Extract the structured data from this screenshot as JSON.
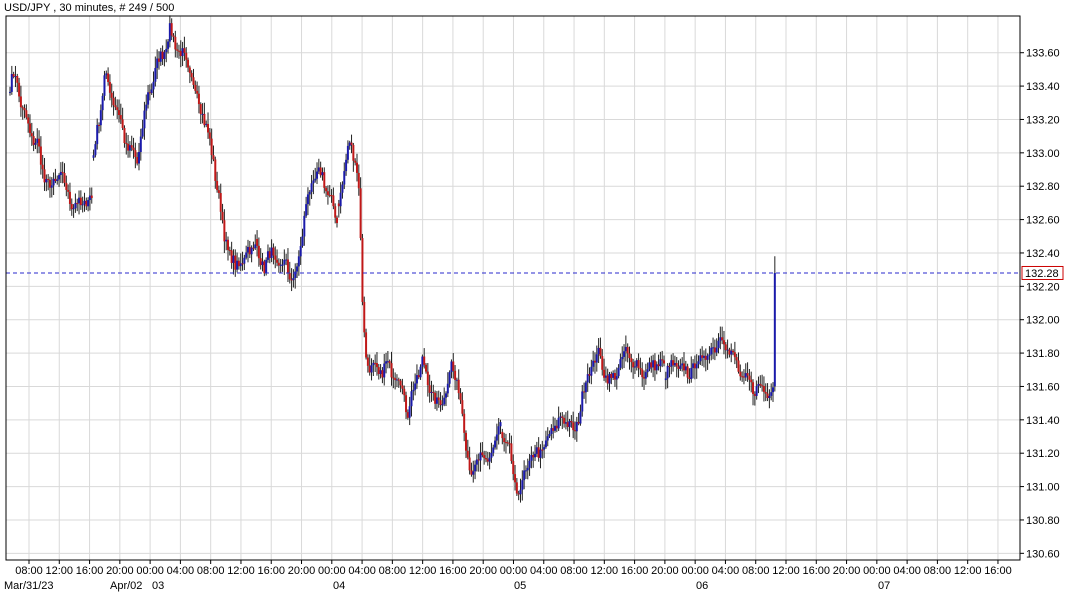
{
  "header": {
    "title": "USD/JPY , 30 minutes, # 249 / 500"
  },
  "current_price": {
    "label": "132.28",
    "value": 132.28
  },
  "colors": {
    "background": "#ffffff",
    "grid": "#d9d9d9",
    "up_candle": "#1a1aaa",
    "down_candle": "#c01818",
    "wick": "#222222",
    "price_line": "#2a2acc",
    "price_box_border": "#cc0000"
  },
  "chart_data": {
    "type": "candlestick",
    "ylim": [
      130.56,
      133.82
    ],
    "y_ticks": [
      "133.60",
      "133.40",
      "133.20",
      "133.00",
      "132.80",
      "132.60",
      "132.40",
      "132.20",
      "132.00",
      "131.80",
      "131.60",
      "131.40",
      "131.20",
      "131.00",
      "130.80",
      "130.60"
    ],
    "x_time_ticks": [
      "08:00",
      "12:00",
      "16:00",
      "20:00",
      "00:00",
      "04:00",
      "08:00",
      "12:00",
      "16:00",
      "20:00",
      "00:00",
      "04:00",
      "08:00",
      "12:00",
      "16:00",
      "20:00",
      "00:00",
      "04:00",
      "08:00",
      "12:00",
      "16:00",
      "20:00",
      "00:00",
      "04:00",
      "08:00",
      "12:00",
      "16:00",
      "20:00",
      "00:00",
      "04:00",
      "08:00",
      "12:00",
      "16:00"
    ],
    "x_date_labels": [
      "Mar/31/23",
      "Apr/02",
      "03",
      "04",
      "05",
      "06",
      "07"
    ],
    "grid": true,
    "price_line": 132.28,
    "segments": [
      {
        "n": 46,
        "points": [
          [
            0,
            133.4
          ],
          [
            3,
            133.47
          ],
          [
            7,
            133.25
          ],
          [
            11,
            133.12
          ],
          [
            15,
            133.05
          ],
          [
            19,
            132.85
          ],
          [
            23,
            132.78
          ],
          [
            27,
            132.88
          ],
          [
            31,
            132.78
          ],
          [
            35,
            132.68
          ],
          [
            40,
            132.7
          ],
          [
            45,
            132.72
          ]
        ]
      },
      {
        "n": 90,
        "points": [
          [
            0,
            132.97
          ],
          [
            6,
            133.45
          ],
          [
            12,
            133.3
          ],
          [
            18,
            133.05
          ],
          [
            24,
            132.95
          ],
          [
            30,
            133.35
          ],
          [
            36,
            133.55
          ],
          [
            42,
            133.72
          ],
          [
            48,
            133.6
          ],
          [
            54,
            133.45
          ],
          [
            60,
            133.25
          ],
          [
            66,
            132.95
          ],
          [
            72,
            132.5
          ],
          [
            78,
            132.3
          ],
          [
            84,
            132.4
          ],
          [
            89,
            132.45
          ]
        ]
      },
      {
        "n": 45,
        "points": [
          [
            0,
            132.42
          ],
          [
            4,
            132.32
          ],
          [
            8,
            132.4
          ],
          [
            12,
            132.3
          ],
          [
            16,
            132.35
          ],
          [
            20,
            132.2
          ],
          [
            24,
            132.45
          ],
          [
            28,
            132.75
          ],
          [
            32,
            132.85
          ],
          [
            36,
            132.87
          ],
          [
            40,
            132.72
          ],
          [
            44,
            132.6
          ]
        ]
      },
      {
        "n": 90,
        "points": [
          [
            0,
            132.7
          ],
          [
            3,
            132.9
          ],
          [
            6,
            133.05
          ],
          [
            9,
            132.98
          ],
          [
            11,
            132.8
          ],
          [
            13,
            132.1
          ],
          [
            15,
            131.78
          ],
          [
            18,
            131.7
          ],
          [
            22,
            131.68
          ],
          [
            26,
            131.72
          ],
          [
            30,
            131.7
          ],
          [
            34,
            131.62
          ],
          [
            38,
            131.45
          ],
          [
            42,
            131.62
          ],
          [
            46,
            131.75
          ],
          [
            50,
            131.6
          ],
          [
            54,
            131.48
          ],
          [
            58,
            131.55
          ],
          [
            62,
            131.72
          ],
          [
            66,
            131.6
          ],
          [
            70,
            131.25
          ],
          [
            74,
            131.05
          ],
          [
            78,
            131.2
          ],
          [
            82,
            131.12
          ],
          [
            86,
            131.3
          ],
          [
            89,
            131.35
          ]
        ]
      },
      {
        "n": 90,
        "points": [
          [
            0,
            131.3
          ],
          [
            4,
            131.2
          ],
          [
            8,
            130.95
          ],
          [
            12,
            131.05
          ],
          [
            16,
            131.18
          ],
          [
            20,
            131.2
          ],
          [
            24,
            131.25
          ],
          [
            28,
            131.35
          ],
          [
            32,
            131.4
          ],
          [
            36,
            131.4
          ],
          [
            40,
            131.3
          ],
          [
            44,
            131.55
          ],
          [
            48,
            131.7
          ],
          [
            52,
            131.8
          ],
          [
            56,
            131.7
          ],
          [
            60,
            131.62
          ],
          [
            64,
            131.72
          ],
          [
            68,
            131.8
          ],
          [
            72,
            131.75
          ],
          [
            76,
            131.7
          ],
          [
            80,
            131.68
          ],
          [
            84,
            131.75
          ],
          [
            88,
            131.72
          ],
          [
            89,
            131.7
          ]
        ]
      },
      {
        "n": 60,
        "points": [
          [
            0,
            131.7
          ],
          [
            6,
            131.72
          ],
          [
            12,
            131.68
          ],
          [
            18,
            131.75
          ],
          [
            24,
            131.8
          ],
          [
            30,
            131.9
          ],
          [
            36,
            131.8
          ],
          [
            42,
            131.65
          ],
          [
            48,
            131.6
          ],
          [
            54,
            131.58
          ],
          [
            59,
            131.58
          ]
        ]
      }
    ],
    "last_bar": {
      "open": 131.6,
      "high": 132.38,
      "low": 131.57,
      "close": 132.28
    }
  }
}
